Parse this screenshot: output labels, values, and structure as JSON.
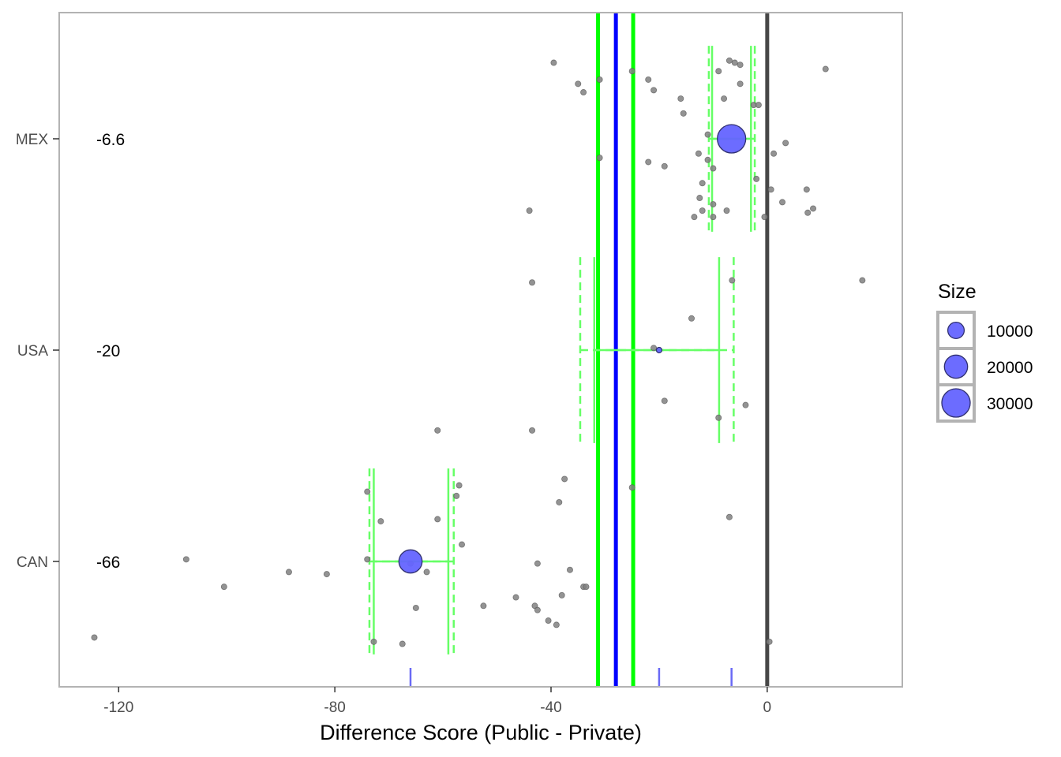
{
  "chart_data": {
    "type": "scatter",
    "title": "",
    "xlabel": "Difference Score  (Public - Private)",
    "ylabel": "",
    "xlim": [
      -131,
      25
    ],
    "grid": false,
    "legend_position": "right",
    "x_ticks": [
      -120,
      -80,
      -40,
      0
    ],
    "categories": [
      "MEX",
      "USA",
      "CAN"
    ],
    "category_value_labels": [
      {
        "country": "MEX",
        "label": "-6.6"
      },
      {
        "country": "USA",
        "label": "-20"
      },
      {
        "country": "CAN",
        "label": "-66"
      }
    ],
    "colors": {
      "points": "#808080",
      "bubble_fill": "#6464ff",
      "bubble_stroke": "#303070",
      "ci": "#00ff00",
      "ci_light": "#66ff66",
      "mean_line": "#0000ff",
      "zero_line": "#474747",
      "rug": "#6a6af5",
      "frame": "#b3b3b3"
    },
    "reference_lines": {
      "zero": 0,
      "overall_mean": -28.0,
      "overall_ci": [
        -31.3,
        -24.8
      ]
    },
    "rug_values": [
      -66,
      -20,
      -6.6
    ],
    "group_estimates": [
      {
        "country": "MEX",
        "estimate": -6.6,
        "size": 30000,
        "ci_solid": [
          -10.2,
          -3.0
        ],
        "ci_dashed": [
          -10.8,
          -2.3
        ]
      },
      {
        "country": "USA",
        "estimate": -20,
        "size": 800,
        "ci_solid": [
          -32.0,
          -8.9
        ],
        "ci_dashed": [
          -34.6,
          -6.2
        ]
      },
      {
        "country": "CAN",
        "estimate": -66,
        "size": 20000,
        "ci_solid": [
          -72.8,
          -59.0
        ],
        "ci_dashed": [
          -73.6,
          -58.0
        ]
      }
    ],
    "points": [
      {
        "country": "MEX",
        "x": -39.5,
        "jitter": 0.36
      },
      {
        "country": "MEX",
        "x": -35.0,
        "jitter": 0.26
      },
      {
        "country": "MEX",
        "x": -34.0,
        "jitter": 0.22
      },
      {
        "country": "MEX",
        "x": -31.0,
        "jitter": 0.28
      },
      {
        "country": "MEX",
        "x": -25.0,
        "jitter": 0.32
      },
      {
        "country": "MEX",
        "x": -22.0,
        "jitter": 0.28
      },
      {
        "country": "MEX",
        "x": -21.0,
        "jitter": 0.23
      },
      {
        "country": "MEX",
        "x": -16.0,
        "jitter": 0.19
      },
      {
        "country": "MEX",
        "x": -15.5,
        "jitter": 0.12
      },
      {
        "country": "MEX",
        "x": -7.0,
        "jitter": 0.37
      },
      {
        "country": "MEX",
        "x": -6.0,
        "jitter": 0.36
      },
      {
        "country": "MEX",
        "x": -5.0,
        "jitter": 0.35
      },
      {
        "country": "MEX",
        "x": -9.0,
        "jitter": 0.32
      },
      {
        "country": "MEX",
        "x": -5.0,
        "jitter": 0.26
      },
      {
        "country": "MEX",
        "x": -8.0,
        "jitter": 0.19
      },
      {
        "country": "MEX",
        "x": -2.5,
        "jitter": 0.16
      },
      {
        "country": "MEX",
        "x": -1.6,
        "jitter": 0.16
      },
      {
        "country": "MEX",
        "x": 10.8,
        "jitter": 0.33
      },
      {
        "country": "MEX",
        "x": -11.0,
        "jitter": 0.02
      },
      {
        "country": "MEX",
        "x": 3.4,
        "jitter": -0.02
      },
      {
        "country": "MEX",
        "x": 1.2,
        "jitter": -0.07
      },
      {
        "country": "MEX",
        "x": -12.7,
        "jitter": -0.07
      },
      {
        "country": "MEX",
        "x": -31.0,
        "jitter": -0.09
      },
      {
        "country": "MEX",
        "x": -22.0,
        "jitter": -0.11
      },
      {
        "country": "MEX",
        "x": -19.0,
        "jitter": -0.13
      },
      {
        "country": "MEX",
        "x": -11.0,
        "jitter": -0.1
      },
      {
        "country": "MEX",
        "x": -10.0,
        "jitter": -0.14
      },
      {
        "country": "MEX",
        "x": -2.0,
        "jitter": -0.19
      },
      {
        "country": "MEX",
        "x": -12.0,
        "jitter": -0.21
      },
      {
        "country": "MEX",
        "x": 0.7,
        "jitter": -0.24
      },
      {
        "country": "MEX",
        "x": 7.3,
        "jitter": -0.24
      },
      {
        "country": "MEX",
        "x": -12.5,
        "jitter": -0.28
      },
      {
        "country": "MEX",
        "x": 2.8,
        "jitter": -0.3
      },
      {
        "country": "MEX",
        "x": -10.0,
        "jitter": -0.31
      },
      {
        "country": "MEX",
        "x": -44.0,
        "jitter": -0.34
      },
      {
        "country": "MEX",
        "x": -12.0,
        "jitter": -0.34
      },
      {
        "country": "MEX",
        "x": -7.5,
        "jitter": -0.34
      },
      {
        "country": "MEX",
        "x": 7.5,
        "jitter": -0.35
      },
      {
        "country": "MEX",
        "x": 8.5,
        "jitter": -0.33
      },
      {
        "country": "MEX",
        "x": -13.5,
        "jitter": -0.37
      },
      {
        "country": "MEX",
        "x": -10.0,
        "jitter": -0.37
      },
      {
        "country": "MEX",
        "x": -0.5,
        "jitter": -0.37
      },
      {
        "country": "USA",
        "x": -43.5,
        "jitter": 0.32
      },
      {
        "country": "USA",
        "x": -6.5,
        "jitter": 0.33
      },
      {
        "country": "USA",
        "x": 17.6,
        "jitter": 0.33
      },
      {
        "country": "USA",
        "x": -14.0,
        "jitter": 0.15
      },
      {
        "country": "USA",
        "x": -21.0,
        "jitter": 0.01
      },
      {
        "country": "USA",
        "x": -19.0,
        "jitter": -0.24
      },
      {
        "country": "USA",
        "x": -9.0,
        "jitter": -0.32
      },
      {
        "country": "USA",
        "x": -4.0,
        "jitter": -0.26
      },
      {
        "country": "USA",
        "x": -61.0,
        "jitter": -0.38
      },
      {
        "country": "USA",
        "x": -43.5,
        "jitter": -0.38
      },
      {
        "country": "CAN",
        "x": -37.5,
        "jitter": 0.39
      },
      {
        "country": "CAN",
        "x": -57.0,
        "jitter": 0.36
      },
      {
        "country": "CAN",
        "x": -74.0,
        "jitter": 0.33
      },
      {
        "country": "CAN",
        "x": -57.5,
        "jitter": 0.31
      },
      {
        "country": "CAN",
        "x": -38.5,
        "jitter": 0.28
      },
      {
        "country": "CAN",
        "x": -71.5,
        "jitter": 0.19
      },
      {
        "country": "CAN",
        "x": -61.0,
        "jitter": 0.2
      },
      {
        "country": "CAN",
        "x": -25.0,
        "jitter": 0.35
      },
      {
        "country": "CAN",
        "x": -7.0,
        "jitter": 0.21
      },
      {
        "country": "CAN",
        "x": -56.5,
        "jitter": 0.08
      },
      {
        "country": "CAN",
        "x": -74.0,
        "jitter": 0.01
      },
      {
        "country": "CAN",
        "x": -107.5,
        "jitter": 0.01
      },
      {
        "country": "CAN",
        "x": -88.5,
        "jitter": -0.05
      },
      {
        "country": "CAN",
        "x": -81.5,
        "jitter": -0.06
      },
      {
        "country": "CAN",
        "x": -100.5,
        "jitter": -0.12
      },
      {
        "country": "CAN",
        "x": -63.0,
        "jitter": -0.05
      },
      {
        "country": "CAN",
        "x": -66.0,
        "jitter": -0.01
      },
      {
        "country": "CAN",
        "x": -42.5,
        "jitter": -0.01
      },
      {
        "country": "CAN",
        "x": -36.5,
        "jitter": -0.04
      },
      {
        "country": "CAN",
        "x": -34.0,
        "jitter": -0.12
      },
      {
        "country": "CAN",
        "x": -33.5,
        "jitter": -0.12
      },
      {
        "country": "CAN",
        "x": -46.5,
        "jitter": -0.17
      },
      {
        "country": "CAN",
        "x": -38.0,
        "jitter": -0.16
      },
      {
        "country": "CAN",
        "x": -52.5,
        "jitter": -0.21
      },
      {
        "country": "CAN",
        "x": -43.0,
        "jitter": -0.21
      },
      {
        "country": "CAN",
        "x": -42.5,
        "jitter": -0.23
      },
      {
        "country": "CAN",
        "x": -65.0,
        "jitter": -0.22
      },
      {
        "country": "CAN",
        "x": -40.5,
        "jitter": -0.28
      },
      {
        "country": "CAN",
        "x": -39.0,
        "jitter": -0.3
      },
      {
        "country": "CAN",
        "x": -124.5,
        "jitter": -0.36
      },
      {
        "country": "CAN",
        "x": -72.8,
        "jitter": -0.38
      },
      {
        "country": "CAN",
        "x": -67.5,
        "jitter": -0.39
      },
      {
        "country": "CAN",
        "x": 0.4,
        "jitter": -0.38
      }
    ],
    "legend": {
      "title": "Size",
      "entries": [
        {
          "label": "10000",
          "value": 10000
        },
        {
          "label": "20000",
          "value": 20000
        },
        {
          "label": "30000",
          "value": 30000
        }
      ]
    }
  }
}
